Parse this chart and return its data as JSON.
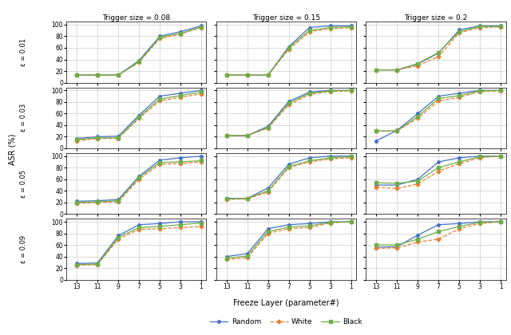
{
  "trigger_sizes": [
    "Trigger size = 0.08",
    "Trigger size = 0.15",
    "Trigger size = 0.2"
  ],
  "epsilon_labels": [
    "ε = 0.01",
    "ε = 0.03",
    "ε = 0.05",
    "ε = 0.09"
  ],
  "ylabel": "ASR (%)",
  "xlabel": "Freeze Layer (parameter#)",
  "line_colors": [
    "#4472C4",
    "#ED7D31",
    "#70AD47"
  ],
  "line_labels": [
    "Random",
    "White",
    "Black"
  ],
  "line_styles": [
    "-",
    "--",
    "-"
  ],
  "markers": [
    "o",
    "D",
    "s"
  ],
  "markersize": 2.5,
  "linewidth": 0.9,
  "x_ticks": [
    13,
    11,
    9,
    7,
    5,
    3,
    1
  ],
  "ylim": [
    0,
    105
  ],
  "yticks": [
    0,
    20,
    40,
    60,
    80,
    100
  ],
  "x_positions": [
    13,
    11,
    9,
    7,
    5,
    3,
    1
  ],
  "data": {
    "0.08": {
      "0.01": {
        "Random": [
          13,
          13,
          13,
          38,
          80,
          88,
          98
        ],
        "White": [
          13,
          13,
          13,
          35,
          76,
          84,
          95
        ],
        "Black": [
          13,
          13,
          13,
          36,
          78,
          85,
          96
        ]
      },
      "0.03": {
        "Random": [
          17,
          20,
          21,
          57,
          90,
          95,
          100
        ],
        "White": [
          13,
          17,
          17,
          52,
          82,
          88,
          94
        ],
        "Black": [
          15,
          18,
          18,
          54,
          85,
          91,
          97
        ]
      },
      "0.05": {
        "Random": [
          22,
          23,
          25,
          65,
          93,
          97,
          100
        ],
        "White": [
          18,
          20,
          21,
          60,
          86,
          87,
          90
        ],
        "Black": [
          20,
          21,
          23,
          63,
          89,
          90,
          92
        ]
      },
      "0.09": {
        "Random": [
          28,
          29,
          76,
          95,
          97,
          100,
          100
        ],
        "White": [
          25,
          26,
          70,
          87,
          88,
          90,
          92
        ],
        "Black": [
          26,
          27,
          73,
          90,
          92,
          95,
          98
        ]
      }
    },
    "0.15": {
      "0.01": {
        "Random": [
          13,
          13,
          13,
          62,
          95,
          98,
          98
        ],
        "White": [
          13,
          13,
          13,
          57,
          88,
          93,
          95
        ],
        "Black": [
          13,
          13,
          13,
          60,
          90,
          95,
          96
        ]
      },
      "0.03": {
        "Random": [
          22,
          22,
          38,
          81,
          97,
          100,
          100
        ],
        "White": [
          22,
          22,
          35,
          75,
          93,
          98,
          99
        ],
        "Black": [
          22,
          22,
          36,
          78,
          95,
          99,
          100
        ]
      },
      "0.05": {
        "Random": [
          27,
          27,
          45,
          86,
          97,
          100,
          100
        ],
        "White": [
          25,
          26,
          38,
          80,
          90,
          95,
          97
        ],
        "Black": [
          26,
          27,
          40,
          82,
          92,
          97,
          99
        ]
      },
      "0.09": {
        "Random": [
          40,
          45,
          88,
          95,
          97,
          100,
          100
        ],
        "White": [
          35,
          38,
          80,
          88,
          90,
          98,
          100
        ],
        "Black": [
          37,
          41,
          83,
          91,
          93,
          99,
          100
        ]
      }
    },
    "0.2": {
      "0.01": {
        "Random": [
          22,
          22,
          32,
          51,
          91,
          98,
          98
        ],
        "White": [
          22,
          22,
          29,
          45,
          86,
          95,
          96
        ],
        "Black": [
          22,
          22,
          33,
          52,
          88,
          97,
          97
        ]
      },
      "0.03": {
        "Random": [
          13,
          31,
          60,
          90,
          95,
          100,
          100
        ],
        "White": [
          30,
          30,
          52,
          82,
          88,
          98,
          99
        ],
        "Black": [
          30,
          30,
          55,
          86,
          91,
          99,
          100
        ]
      },
      "0.05": {
        "Random": [
          50,
          50,
          60,
          90,
          97,
          100,
          100
        ],
        "White": [
          46,
          44,
          52,
          74,
          87,
          97,
          100
        ],
        "Black": [
          54,
          53,
          57,
          80,
          90,
          99,
          100
        ]
      },
      "0.09": {
        "Random": [
          56,
          57,
          77,
          95,
          97,
          100,
          100
        ],
        "White": [
          54,
          55,
          65,
          70,
          88,
          97,
          100
        ],
        "Black": [
          60,
          60,
          70,
          83,
          92,
          99,
          100
        ]
      }
    }
  },
  "figsize": [
    6.4,
    4.2
  ],
  "dpi": 100
}
